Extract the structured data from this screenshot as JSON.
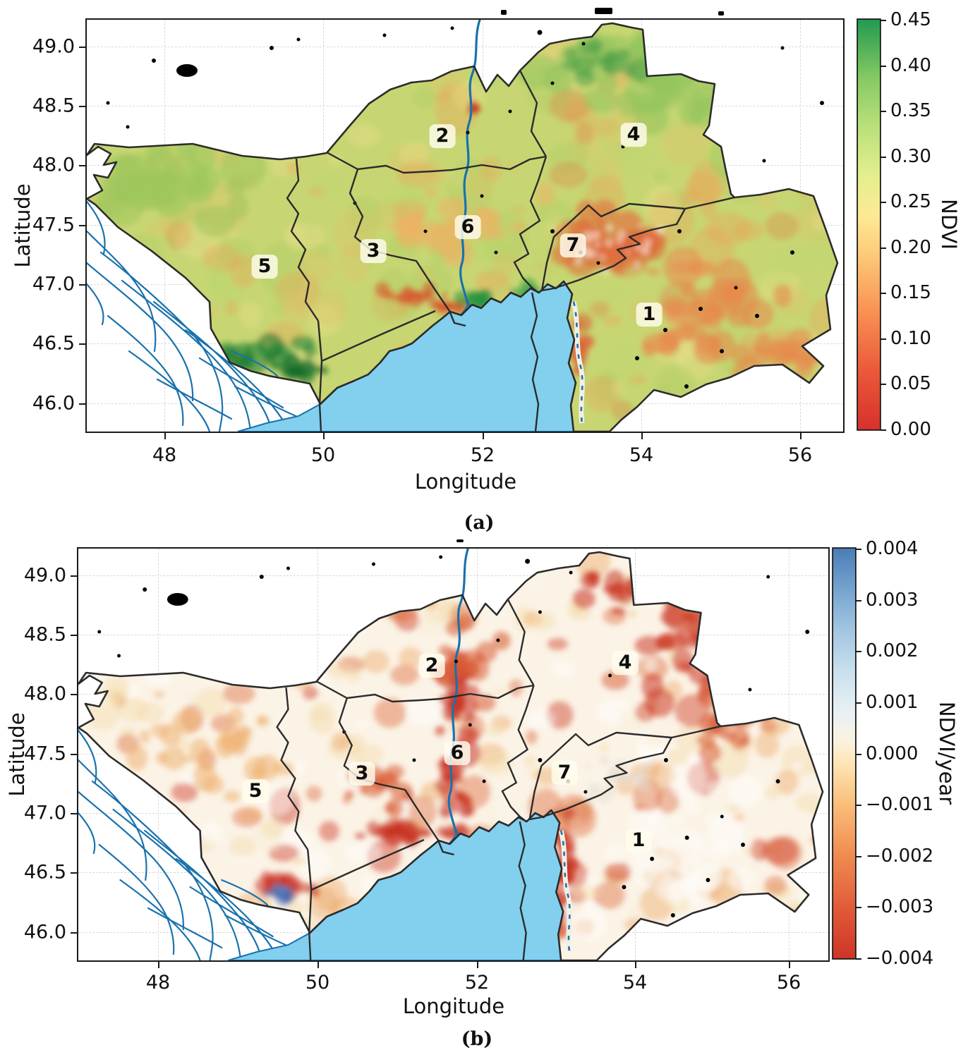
{
  "figure": {
    "caption_a": "(a)",
    "caption_b": "(b)"
  },
  "map": {
    "region_labels": [
      "1",
      "2",
      "3",
      "4",
      "5",
      "6",
      "7"
    ]
  },
  "panel_a": {
    "xlabel": "Longitude",
    "ylabel": "Latitude",
    "x_ticks": [
      "48",
      "50",
      "52",
      "54",
      "56"
    ],
    "y_ticks": [
      "49.0",
      "48.5",
      "48.0",
      "47.5",
      "47.0",
      "46.5",
      "46.0"
    ],
    "colorbar": {
      "label": "NDVI",
      "colormap": "RdYlGn",
      "ticks": [
        "0.45",
        "0.40",
        "0.35",
        "0.30",
        "0.25",
        "0.20",
        "0.15",
        "0.10",
        "0.05",
        "0.00"
      ]
    }
  },
  "panel_b": {
    "xlabel": "Longitude",
    "ylabel": "Latitude",
    "x_ticks": [
      "48",
      "50",
      "52",
      "54",
      "56"
    ],
    "y_ticks": [
      "49.0",
      "48.5",
      "48.0",
      "47.5",
      "47.0",
      "46.5",
      "46.0"
    ],
    "colorbar": {
      "label": "NDVI/year",
      "colormap": "RdYlBu",
      "ticks": [
        "0.004",
        "0.003",
        "0.002",
        "0.001",
        "0.000",
        "−0.001",
        "−0.002",
        "−0.003",
        "−0.004"
      ]
    }
  },
  "chart_data": [
    {
      "type": "heatmap",
      "title": "NDVI map of study area with numbered districts",
      "xlabel": "Longitude",
      "ylabel": "Latitude",
      "xlim": [
        47.0,
        56.5
      ],
      "ylim": [
        45.75,
        49.2
      ],
      "grid": true,
      "colorbar": {
        "label": "NDVI",
        "range": [
          0.0,
          0.45
        ],
        "tick_step": 0.05,
        "colormap": "RdYlGn"
      },
      "regions": [
        "1",
        "2",
        "3",
        "4",
        "5",
        "6",
        "7"
      ]
    },
    {
      "type": "heatmap",
      "title": "NDVI trend map (NDVI/year) of study area with numbered districts",
      "xlabel": "Longitude",
      "ylabel": "Latitude",
      "xlim": [
        47.0,
        56.5
      ],
      "ylim": [
        45.75,
        49.2
      ],
      "grid": true,
      "colorbar": {
        "label": "NDVI/year",
        "range": [
          -0.004,
          0.004
        ],
        "tick_step": 0.001,
        "colormap": "RdYlBu"
      },
      "regions": [
        "1",
        "2",
        "3",
        "4",
        "5",
        "6",
        "7"
      ]
    }
  ]
}
